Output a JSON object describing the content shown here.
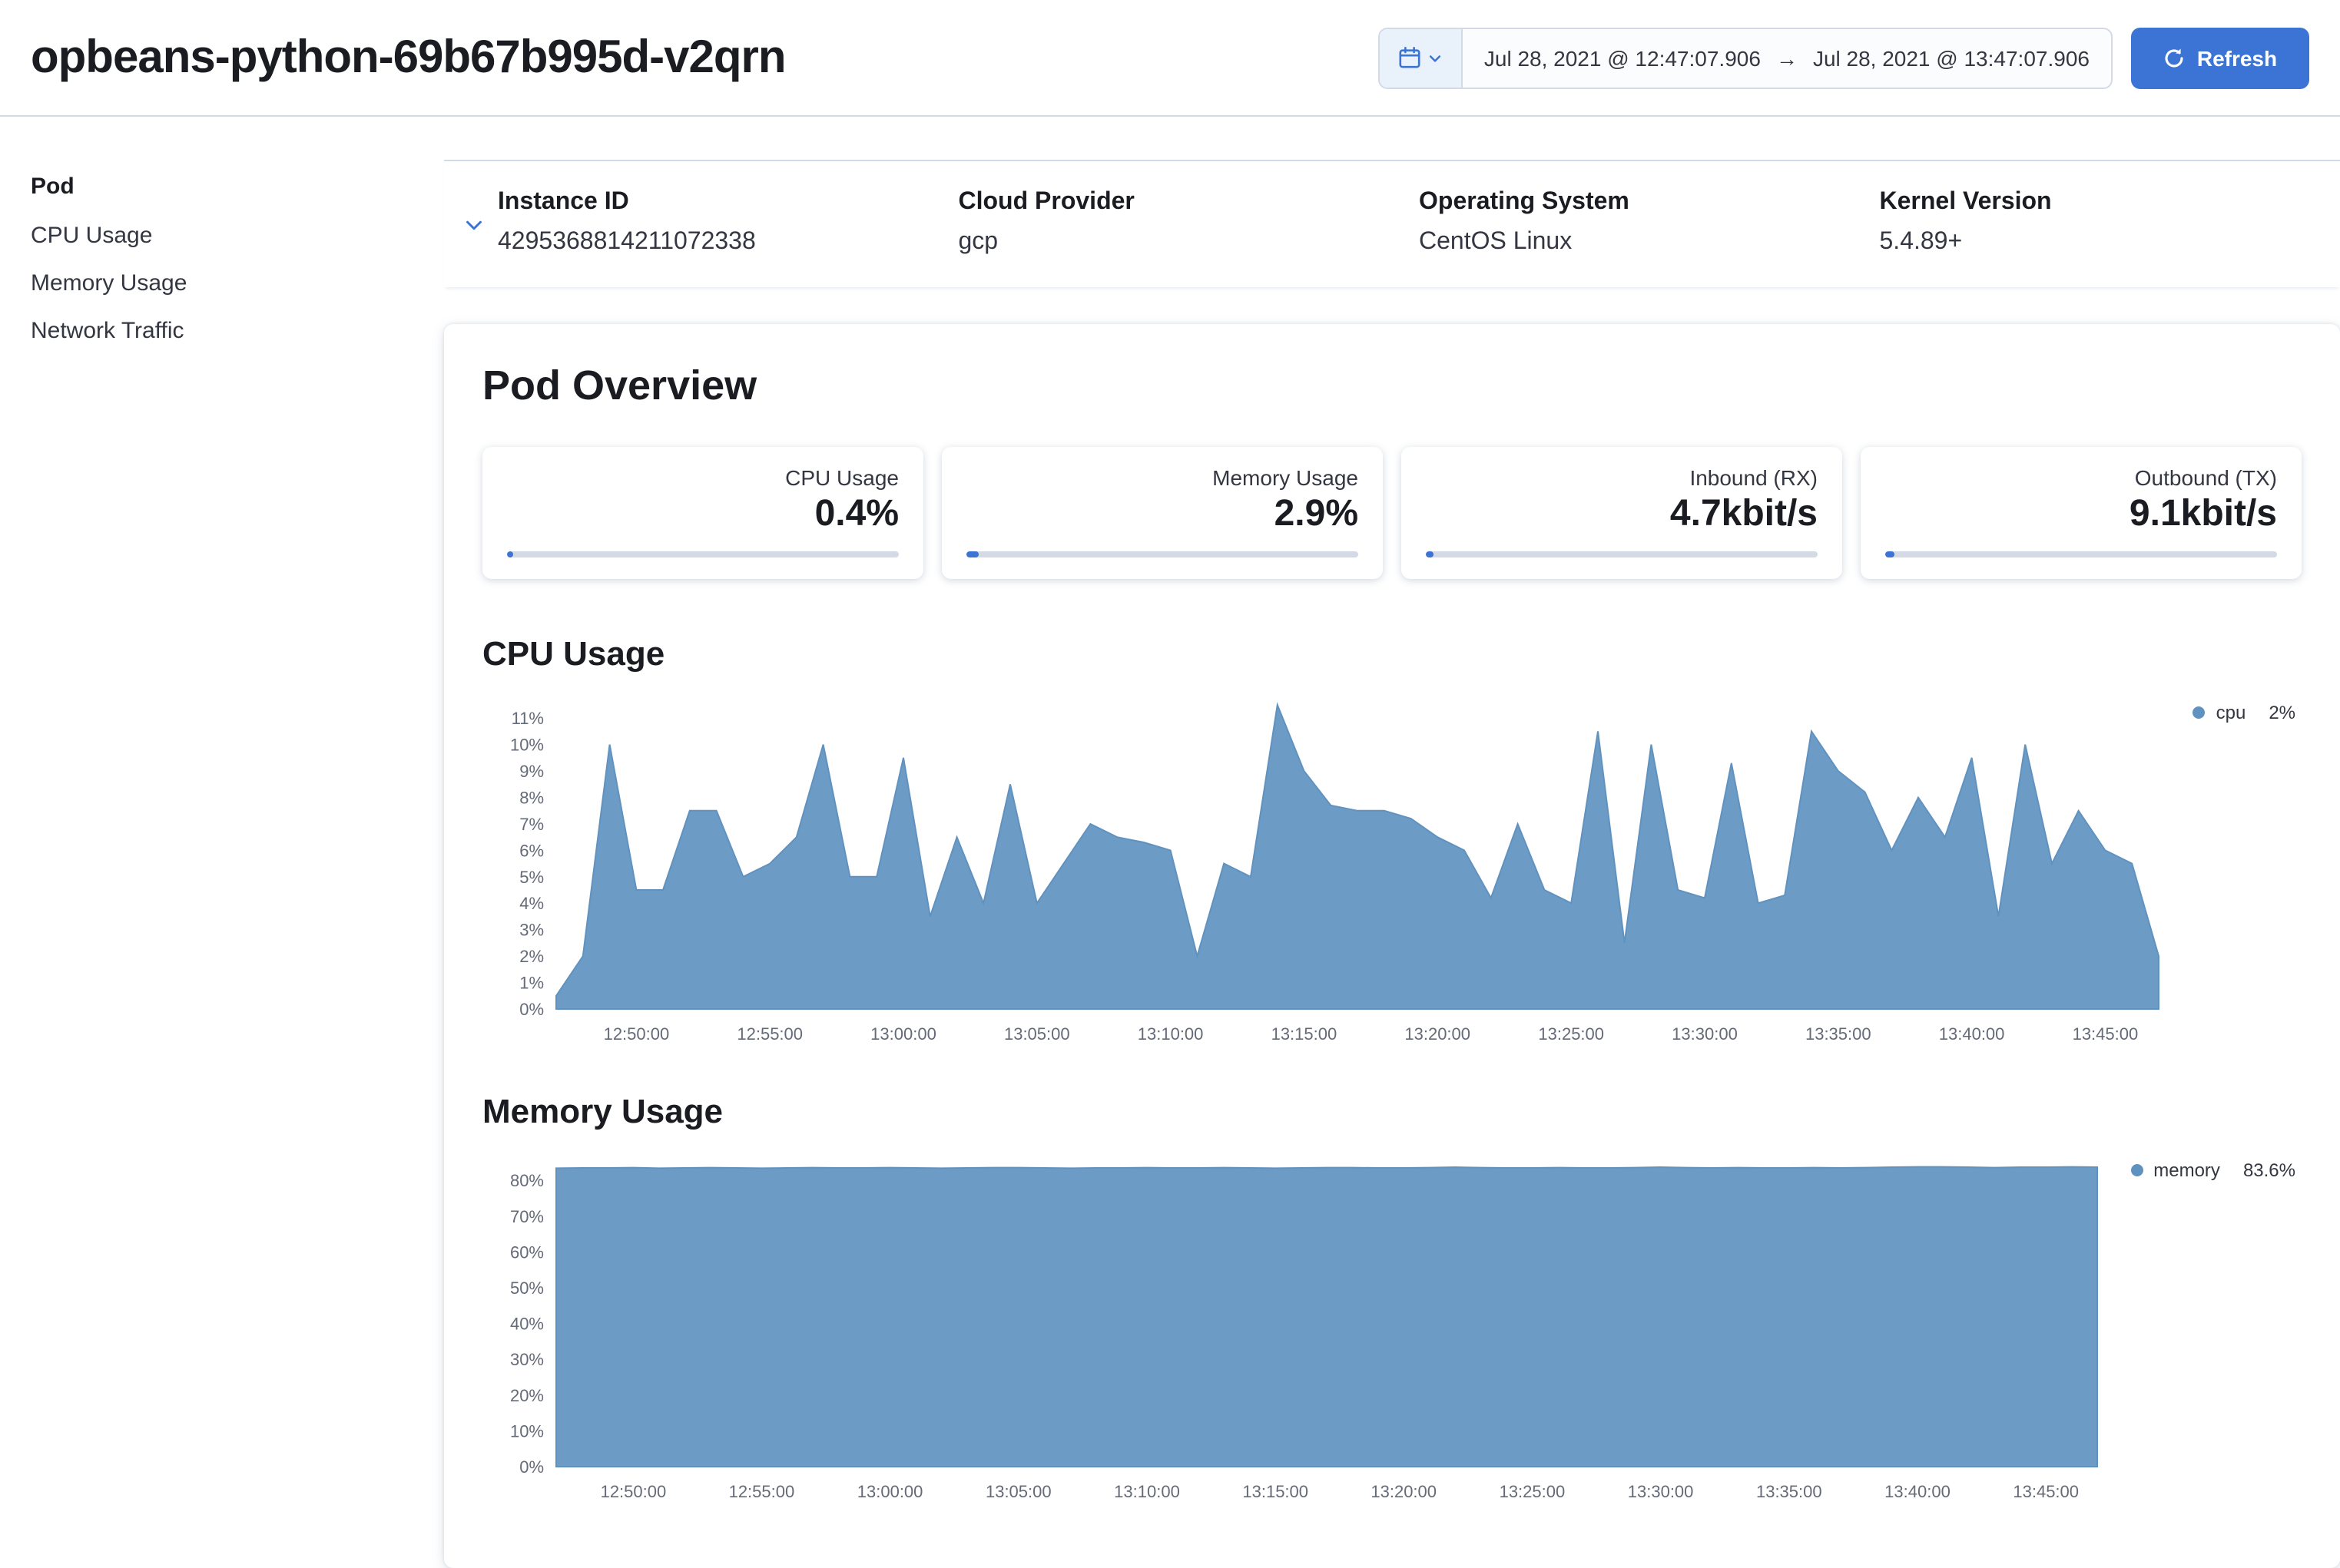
{
  "colors": {
    "primary": "#3b74d4",
    "chart_blue": "#6092C0",
    "border": "#d3dae6",
    "heading_text": "#1a1c21",
    "body_text": "#343741",
    "muted_text": "#646a77"
  },
  "header": {
    "title": "opbeans-python-69b67b995d-v2qrn",
    "date_picker": {
      "start": "Jul 28, 2021 @ 12:47:07.906",
      "end": "Jul 28, 2021 @ 13:47:07.906",
      "arrow": "→",
      "refresh_label": "Refresh"
    }
  },
  "sidebar": {
    "heading": "Pod",
    "items": [
      {
        "label": "CPU Usage"
      },
      {
        "label": "Memory Usage"
      },
      {
        "label": "Network Traffic"
      }
    ]
  },
  "metadata": {
    "fields": [
      {
        "label": "Instance ID",
        "value": "4295368814211072338"
      },
      {
        "label": "Cloud Provider",
        "value": "gcp"
      },
      {
        "label": "Operating System",
        "value": "CentOS Linux"
      },
      {
        "label": "Kernel Version",
        "value": "5.4.89+"
      }
    ]
  },
  "overview": {
    "title": "Pod Overview",
    "metrics": [
      {
        "label": "CPU Usage",
        "value": "0.4%",
        "progress_pct": 1.5
      },
      {
        "label": "Memory Usage",
        "value": "2.9%",
        "progress_pct": 3
      },
      {
        "label": "Inbound (RX)",
        "value": "4.7kbit/s",
        "progress_pct": 2
      },
      {
        "label": "Outbound (TX)",
        "value": "9.1kbit/s",
        "progress_pct": 2.5
      }
    ]
  },
  "chart_data": [
    {
      "type": "area",
      "title": "CPU Usage",
      "color": "#6092C0",
      "legend": {
        "name": "cpu",
        "value": "2%"
      },
      "x_start": "12:47:00",
      "x_end": "13:47:00",
      "x_unit": "minutes from 12:47:00",
      "ylim": [
        0,
        11.5
      ],
      "ymax": 11.5,
      "y_ticks": [
        0,
        1,
        2,
        3,
        4,
        5,
        6,
        7,
        8,
        9,
        10,
        11
      ],
      "x_tick_minutes": [
        3,
        8,
        13,
        18,
        23,
        28,
        33,
        38,
        43,
        48,
        53,
        58
      ],
      "x_tick_labels": [
        "12:50:00",
        "12:55:00",
        "13:00:00",
        "13:05:00",
        "13:10:00",
        "13:15:00",
        "13:20:00",
        "13:25:00",
        "13:30:00",
        "13:35:00",
        "13:40:00",
        "13:45:00"
      ],
      "values": [
        0.5,
        2,
        10,
        4.5,
        4.5,
        7.5,
        7.5,
        5,
        5.5,
        6.5,
        10,
        5,
        5,
        9.5,
        3.5,
        6.5,
        4,
        8.5,
        4,
        5.5,
        7,
        6.5,
        6.3,
        6,
        2,
        5.5,
        5,
        11.5,
        9,
        7.7,
        7.5,
        7.5,
        7.2,
        6.5,
        6,
        4.2,
        7,
        4.5,
        4,
        10.5,
        2.5,
        10,
        4.5,
        4.2,
        9.3,
        4,
        4.3,
        10.5,
        9,
        8.2,
        6,
        8,
        6.5,
        9.5,
        3.5,
        10,
        5.5,
        7.5,
        6,
        5.5,
        2
      ]
    },
    {
      "type": "area",
      "title": "Memory Usage",
      "color": "#6092C0",
      "legend": {
        "name": "memory",
        "value": "83.6%"
      },
      "x_start": "12:47:00",
      "x_end": "13:47:00",
      "x_unit": "minutes from 12:47:00",
      "ylim": [
        0,
        85
      ],
      "ymax": 85,
      "y_ticks": [
        0,
        10,
        20,
        30,
        40,
        50,
        60,
        70,
        80
      ],
      "x_tick_minutes": [
        3,
        8,
        13,
        18,
        23,
        28,
        33,
        38,
        43,
        48,
        53,
        58
      ],
      "x_tick_labels": [
        "12:50:00",
        "12:55:00",
        "13:00:00",
        "13:05:00",
        "13:10:00",
        "13:15:00",
        "13:20:00",
        "13:25:00",
        "13:30:00",
        "13:35:00",
        "13:40:00",
        "13:45:00"
      ],
      "values": [
        83.4,
        83.5,
        83.5,
        83.6,
        83.4,
        83.5,
        83.6,
        83.5,
        83.4,
        83.5,
        83.6,
        83.5,
        83.5,
        83.6,
        83.5,
        83.4,
        83.5,
        83.6,
        83.6,
        83.5,
        83.4,
        83.5,
        83.5,
        83.6,
        83.5,
        83.5,
        83.6,
        83.5,
        83.4,
        83.5,
        83.6,
        83.6,
        83.5,
        83.5,
        83.6,
        83.7,
        83.6,
        83.5,
        83.5,
        83.6,
        83.5,
        83.5,
        83.6,
        83.7,
        83.6,
        83.5,
        83.6,
        83.5,
        83.5,
        83.6,
        83.5,
        83.6,
        83.7,
        83.8,
        83.8,
        83.7,
        83.6,
        83.7,
        83.7,
        83.8,
        83.7
      ]
    }
  ]
}
